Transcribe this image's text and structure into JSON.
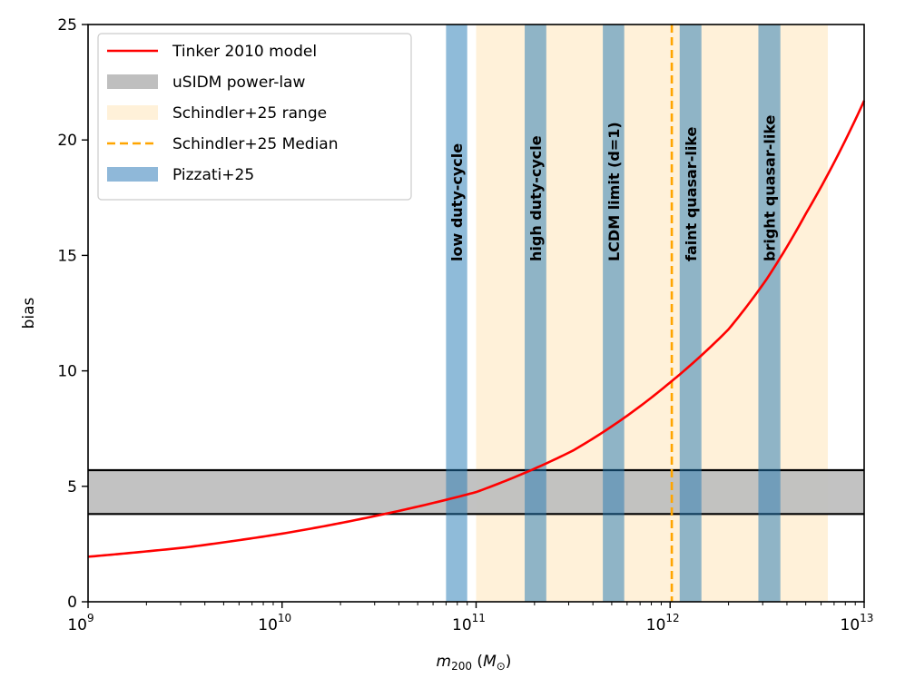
{
  "chart_data": {
    "type": "line",
    "xscale": "log",
    "xlim": [
      1000000000.0,
      10000000000000.0
    ],
    "ylim": [
      0,
      25
    ],
    "xlabel": "m200 (M⊙)",
    "xlabel_main": "m",
    "xlabel_sub": "200",
    "xlabel_unit_open": " (",
    "xlabel_unit_var": "M",
    "xlabel_unit_sub": "⊙",
    "xlabel_unit_close": ")",
    "ylabel": "bias",
    "x_ticks": [
      {
        "value": 1000000000.0,
        "base": "10",
        "exp": "9"
      },
      {
        "value": 10000000000.0,
        "base": "10",
        "exp": "10"
      },
      {
        "value": 100000000000.0,
        "base": "10",
        "exp": "11"
      },
      {
        "value": 1000000000000.0,
        "base": "10",
        "exp": "12"
      },
      {
        "value": 10000000000000.0,
        "base": "10",
        "exp": "13"
      }
    ],
    "y_ticks": [
      {
        "value": 0,
        "label": "0"
      },
      {
        "value": 5,
        "label": "5"
      },
      {
        "value": 10,
        "label": "10"
      },
      {
        "value": 15,
        "label": "15"
      },
      {
        "value": 20,
        "label": "20"
      },
      {
        "value": 25,
        "label": "25"
      }
    ],
    "series": [
      {
        "name": "Tinker 2010 model",
        "color": "#ff0000",
        "x": [
          1000000000.0,
          3160000000.0,
          10000000000.0,
          31600000000.0,
          100000000000.0,
          316000000000.0,
          1000000000000.0,
          2000000000000.0,
          3160000000000.0,
          5000000000000.0,
          10000000000000.0
        ],
        "y": [
          1.95,
          2.35,
          2.95,
          3.75,
          4.75,
          6.55,
          9.5,
          11.8,
          14.0,
          16.8,
          21.7
        ]
      }
    ],
    "hband": {
      "name": "uSIDM power-law",
      "y0": 3.8,
      "y1": 5.7,
      "color": "#bfbfbf"
    },
    "range_band": {
      "name": "Schindler+25 range",
      "x0": 100000000000.0,
      "x1": 6500000000000.0,
      "color": "#fff1d9"
    },
    "median_line": {
      "name": "Schindler+25 Median",
      "x": 1020000000000.0,
      "color": "#ffa500"
    },
    "pizzati": {
      "name": "Pizzati+25",
      "color": "#1f77b4",
      "alpha": 0.5,
      "bands": [
        {
          "x0": 70000000000.0,
          "x1": 90000000000.0,
          "label": "low duty-cycle"
        },
        {
          "x0": 178000000000.0,
          "x1": 230000000000.0,
          "label": "high duty-cycle"
        },
        {
          "x0": 450000000000.0,
          "x1": 580000000000.0,
          "label": "LCDM limit (d=1)"
        },
        {
          "x0": 1120000000000.0,
          "x1": 1450000000000.0,
          "label": "faint quasar-like"
        },
        {
          "x0": 2850000000000.0,
          "x1": 3700000000000.0,
          "label": "bright quasar-like"
        }
      ]
    },
    "legend": {
      "position": "top-left",
      "entries": [
        {
          "label": "Tinker 2010 model",
          "kind": "line",
          "color": "#ff0000"
        },
        {
          "label": "uSIDM power-law",
          "kind": "patch",
          "color": "#bfbfbf"
        },
        {
          "label": "Schindler+25 range",
          "kind": "patch",
          "color": "#fff1d9"
        },
        {
          "label": "Schindler+25 Median",
          "kind": "dashed",
          "color": "#ffa500"
        },
        {
          "label": "Pizzati+25",
          "kind": "patch",
          "color": "#8fb8d9"
        }
      ]
    }
  }
}
